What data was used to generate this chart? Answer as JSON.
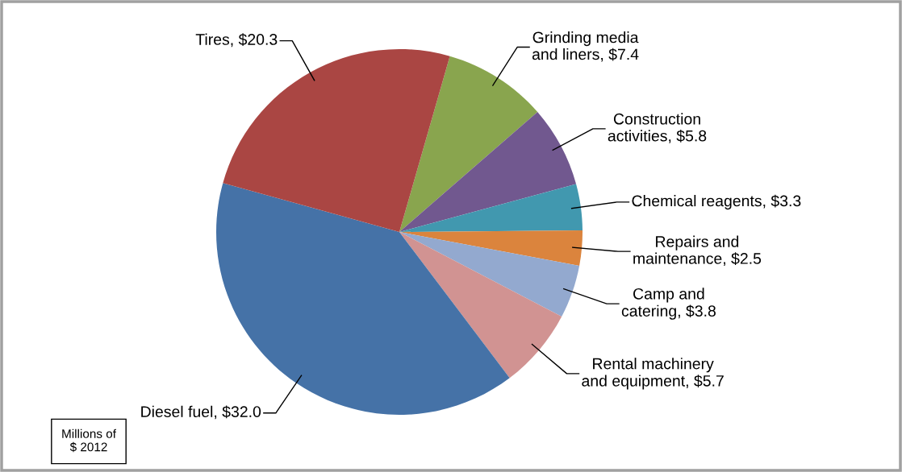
{
  "chart_data": {
    "type": "pie",
    "categories": [
      "Grinding media\nand liners",
      "Construction\nactivities",
      "Chemical reagents",
      "Repairs and\nmaintenance",
      "Camp and\ncatering",
      "Rental machinery\nand equipment",
      "Diesel fuel",
      "Tires"
    ],
    "values": [
      7.4,
      5.8,
      3.3,
      2.5,
      3.8,
      5.7,
      32.0,
      20.3
    ],
    "value_labels": [
      "$7.4",
      "$5.8",
      "$3.3",
      "$2.5",
      "$3.8",
      "$5.7",
      "$32.0",
      "$20.3"
    ],
    "colors": [
      "#89a54e",
      "#71588f",
      "#4198af",
      "#db843d",
      "#93a9cf",
      "#d19392",
      "#4572a7",
      "#aa4643"
    ],
    "annotations": [
      "Millions of\n$ 2012"
    ]
  }
}
